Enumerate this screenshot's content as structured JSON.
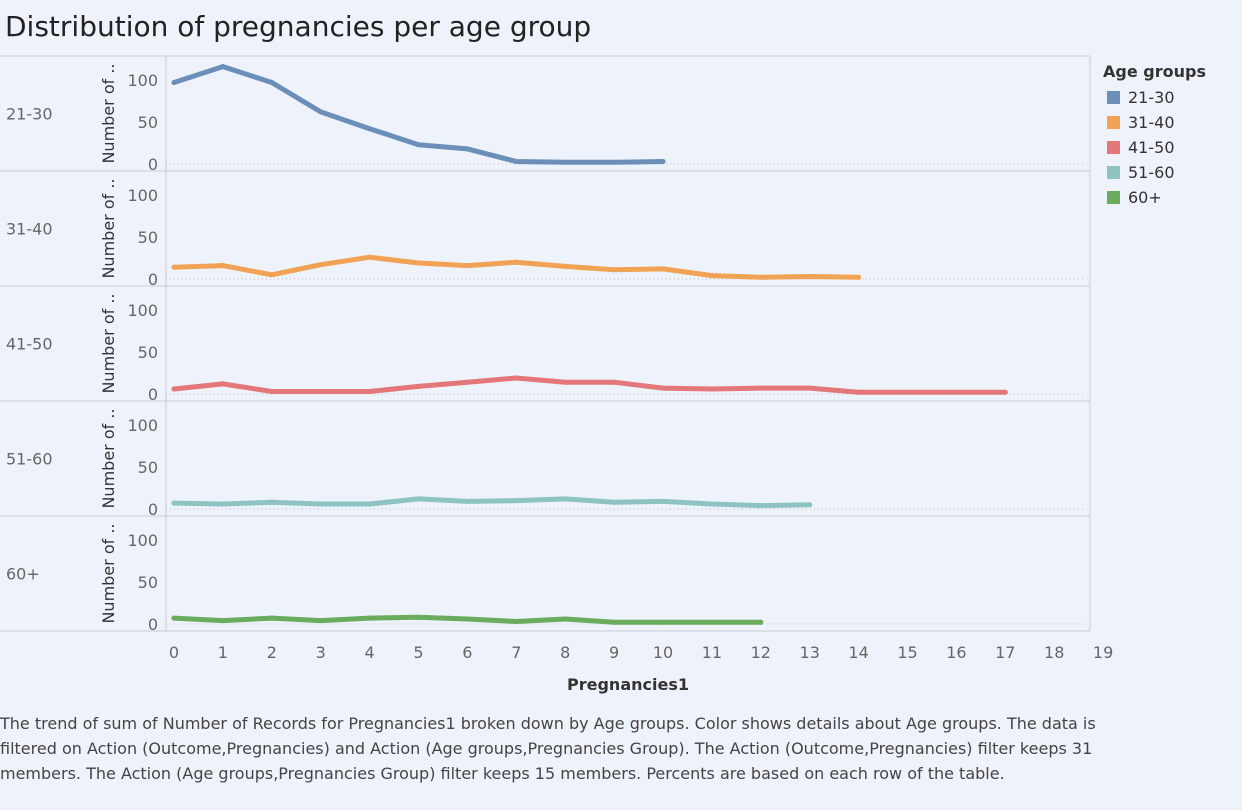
{
  "title": "Distribution of pregnancies per age group",
  "legend": {
    "title": "Age groups",
    "items": [
      {
        "label": "21-30",
        "color": "#6b8fb8"
      },
      {
        "label": "31-40",
        "color": "#f2a255"
      },
      {
        "label": "41-50",
        "color": "#e37779"
      },
      {
        "label": "51-60",
        "color": "#8dc4c2"
      },
      {
        "label": "60+",
        "color": "#6aab5e"
      }
    ]
  },
  "caption": "The trend of sum of Number of Records for Pregnancies1 broken down by Age groups.  Color shows details about Age groups. The data is filtered on Action (Outcome,Pregnancies) and Action (Age groups,Pregnancies Group). The Action (Outcome,Pregnancies) filter keeps 31 members. The Action (Age groups,Pregnancies Group) filter keeps 15 members. Percents are based on each row of the table.",
  "chart_data": {
    "type": "line",
    "title": "Distribution of pregnancies per age group",
    "xlabel": "Pregnancies1",
    "ylabel": "Number of ..",
    "x_ticks": [
      0,
      1,
      2,
      3,
      4,
      5,
      6,
      7,
      8,
      9,
      10,
      11,
      12,
      13,
      14,
      15,
      16,
      17,
      18,
      19
    ],
    "y_ticks": [
      0,
      50,
      100
    ],
    "ylim": [
      0,
      110
    ],
    "xlim": [
      0,
      19
    ],
    "series": [
      {
        "name": "21-30",
        "color": "#6b8fb8",
        "x": [
          0,
          1,
          2,
          3,
          4,
          5,
          6,
          7,
          8,
          9,
          10
        ],
        "values": [
          97,
          116,
          97,
          62,
          42,
          23,
          18,
          3,
          2,
          2,
          3
        ]
      },
      {
        "name": "31-40",
        "color": "#f2a255",
        "x": [
          0,
          1,
          2,
          3,
          4,
          5,
          6,
          7,
          8,
          9,
          10,
          11,
          12,
          13,
          14
        ],
        "values": [
          14,
          16,
          5,
          17,
          26,
          19,
          16,
          20,
          15,
          11,
          12,
          4,
          2,
          3,
          2
        ]
      },
      {
        "name": "41-50",
        "color": "#e37779",
        "x": [
          0,
          1,
          2,
          3,
          4,
          5,
          6,
          7,
          8,
          9,
          10,
          11,
          12,
          13,
          14,
          15,
          16,
          17
        ],
        "values": [
          6,
          12,
          3,
          3,
          3,
          9,
          14,
          19,
          14,
          14,
          7,
          6,
          7,
          7,
          2,
          2,
          2,
          2
        ]
      },
      {
        "name": "51-60",
        "color": "#8dc4c2",
        "x": [
          0,
          1,
          2,
          3,
          4,
          5,
          6,
          7,
          8,
          9,
          10,
          11,
          12,
          13
        ],
        "values": [
          7,
          6,
          8,
          6,
          6,
          12,
          9,
          10,
          12,
          8,
          9,
          6,
          4,
          5
        ]
      },
      {
        "name": "60+",
        "color": "#6aab5e",
        "x": [
          0,
          1,
          2,
          3,
          4,
          5,
          6,
          7,
          8,
          9,
          10,
          11,
          12
        ],
        "values": [
          7,
          4,
          7,
          4,
          7,
          8,
          6,
          3,
          6,
          2,
          2,
          2,
          2
        ]
      }
    ]
  }
}
